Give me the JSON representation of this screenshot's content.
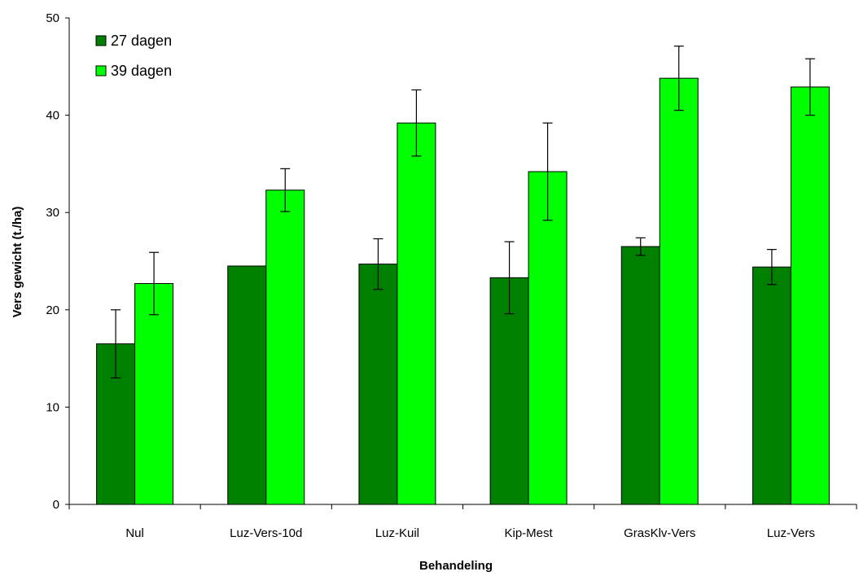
{
  "chart_data": {
    "type": "bar",
    "title": "",
    "xlabel": "Behandeling",
    "ylabel": "Vers gewicht (t./ha)",
    "ylim": [
      0,
      50
    ],
    "yticks": [
      0,
      10,
      20,
      30,
      40,
      50
    ],
    "grid": false,
    "legend_position": "top-left",
    "categories": [
      "Nul",
      "Luz-Vers-10d",
      "Luz-Kuil",
      "Kip-Mest",
      "GrasKlv-Vers",
      "Luz-Vers"
    ],
    "series": [
      {
        "name": "27 dagen",
        "color": "#008000",
        "values": [
          16.5,
          24.5,
          24.7,
          23.3,
          26.5,
          24.4
        ],
        "error": [
          3.5,
          null,
          2.6,
          3.7,
          0.9,
          1.8
        ]
      },
      {
        "name": "39 dagen",
        "color": "#00ff00",
        "values": [
          22.7,
          32.3,
          39.2,
          34.2,
          43.8,
          42.9
        ],
        "error": [
          3.2,
          2.2,
          3.4,
          5.0,
          3.3,
          2.9
        ]
      }
    ]
  }
}
